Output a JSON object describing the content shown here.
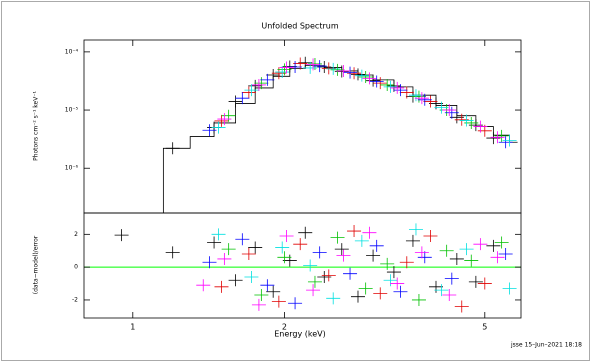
{
  "chart_data": [
    {
      "type": "scatter",
      "title": "Unfolded Spectrum",
      "y_label": "Photons cm⁻² s⁻¹ keV⁻¹",
      "log_x": true,
      "log_y": true,
      "xlim": [
        0.8,
        5.9
      ],
      "ylim": [
        1.7e-07,
        0.00016
      ],
      "yticks": [
        {
          "value": 1e-06,
          "label": "10⁻⁶"
        },
        {
          "value": 1e-05,
          "label": "10⁻⁵"
        },
        {
          "value": 0.0001,
          "label": "10⁻⁴"
        }
      ],
      "model": {
        "color": "#000000",
        "x": [
          1.15,
          1.3,
          1.45,
          1.6,
          1.75,
          1.9,
          2.05,
          2.2,
          2.4,
          2.6,
          2.8,
          3.0,
          3.3,
          3.6,
          4.0,
          4.4,
          4.8,
          5.2,
          5.6
        ],
        "values": [
          2.2e-06,
          3.5e-06,
          6e-06,
          1.3e-05,
          2.4e-05,
          3.8e-05,
          5.2e-05,
          5.8e-05,
          5.4e-05,
          4.7e-05,
          4e-05,
          3.3e-05,
          2.5e-05,
          1.8e-05,
          1.2e-05,
          8e-06,
          5.2e-06,
          3.7e-06,
          2.8e-06
        ]
      },
      "series": [
        {
          "color": "#000000",
          "x": [
            1.2,
            1.45,
            1.6,
            1.75,
            1.9,
            2.05,
            2.2,
            2.4,
            2.6,
            2.8,
            3.0,
            3.3,
            3.6,
            4.0,
            4.4,
            4.8,
            5.2
          ],
          "values": [
            2.2e-06,
            5e-06,
            1.4e-05,
            2.6e-05,
            4e-05,
            5.6e-05,
            6.5e-05,
            5.5e-05,
            4.6e-05,
            4.1e-05,
            3.2e-05,
            2.6e-05,
            1.7e-05,
            1.3e-05,
            7.5e-06,
            5.5e-06,
            3.3e-06
          ]
        },
        {
          "color": "#e00000",
          "x": [
            1.5,
            1.7,
            1.95,
            2.15,
            2.45,
            2.75,
            3.1,
            3.5,
            3.9,
            4.5,
            5.0
          ],
          "values": [
            6.5e-06,
            2e-05,
            4.3e-05,
            6.3e-05,
            5.2e-05,
            4.3e-05,
            2.9e-05,
            2e-05,
            1.4e-05,
            6.8e-06,
            4.4e-06
          ]
        },
        {
          "color": "#00c000",
          "x": [
            1.55,
            1.8,
            2.0,
            2.3,
            2.55,
            2.9,
            3.2,
            3.7,
            4.2,
            4.7,
            5.4
          ],
          "values": [
            8e-06,
            2.9e-05,
            5e-05,
            6.2e-05,
            4.9e-05,
            3.7e-05,
            2.7e-05,
            1.7e-05,
            1e-05,
            6e-06,
            3.6e-06
          ]
        },
        {
          "color": "#0000ff",
          "x": [
            1.42,
            1.65,
            1.85,
            2.1,
            2.35,
            2.7,
            3.05,
            3.4,
            3.8,
            4.3,
            5.5
          ],
          "values": [
            4.5e-06,
            1.6e-05,
            3.3e-05,
            5.5e-05,
            5.7e-05,
            4.4e-05,
            3.1e-05,
            2.2e-05,
            1.5e-05,
            9e-06,
            2.8e-06
          ]
        },
        {
          "color": "#00e0e0",
          "x": [
            1.48,
            1.72,
            1.98,
            2.25,
            2.5,
            2.85,
            3.25,
            3.65,
            4.1,
            4.6,
            5.6
          ],
          "values": [
            5e-06,
            2.2e-05,
            4.5e-05,
            5.3e-05,
            5.1e-05,
            3.9e-05,
            2.5e-05,
            1.8e-05,
            1.1e-05,
            6.6e-06,
            3e-06
          ]
        },
        {
          "color": "#ff00ff",
          "x": [
            1.52,
            1.78,
            2.02,
            2.28,
            2.62,
            2.95,
            3.35,
            3.75,
            4.25,
            4.9,
            5.3
          ],
          "values": [
            7e-06,
            2.7e-05,
            5.4e-05,
            6.1e-05,
            4.7e-05,
            3.5e-05,
            2.4e-05,
            1.6e-05,
            1e-05,
            5.2e-06,
            3.4e-06
          ]
        }
      ]
    },
    {
      "type": "scatter",
      "x_label": "Energy (keV)",
      "y_label": "(data−model)/error",
      "log_x": true,
      "xlim": [
        0.8,
        5.9
      ],
      "ylim": [
        -3.1,
        3.3
      ],
      "xticks": [
        1,
        2,
        5
      ],
      "yticks": [
        -2,
        0,
        2
      ],
      "zero_line": {
        "value": 0,
        "color": "#00ff00"
      },
      "series": [
        {
          "color": "#000000",
          "x": [
            0.95,
            1.2,
            1.45,
            1.6,
            1.75,
            1.9,
            2.05,
            2.2,
            2.4,
            2.6,
            2.8,
            3.0,
            3.3,
            3.6,
            4.0,
            4.4,
            4.8,
            5.2
          ],
          "values": [
            1.95,
            0.9,
            1.5,
            -0.8,
            1.2,
            -1.5,
            0.4,
            2.1,
            -0.6,
            1.1,
            -1.8,
            0.7,
            -0.3,
            1.6,
            -1.2,
            0.5,
            -0.9,
            1.3
          ]
        },
        {
          "color": "#e00000",
          "x": [
            1.5,
            1.7,
            1.95,
            2.15,
            2.45,
            2.75,
            3.1,
            3.5,
            3.9,
            4.5,
            5.0
          ],
          "values": [
            -1.2,
            0.8,
            -2.1,
            1.4,
            -0.5,
            2.2,
            -1.6,
            0.3,
            1.9,
            -2.4,
            -1.0
          ]
        },
        {
          "color": "#00c000",
          "x": [
            1.55,
            1.8,
            2.0,
            2.3,
            2.55,
            2.9,
            3.2,
            3.7,
            4.2,
            4.7,
            5.4
          ],
          "values": [
            1.1,
            -1.7,
            0.6,
            -0.9,
            1.8,
            -1.3,
            0.2,
            -2.0,
            1.0,
            0.4,
            1.5
          ]
        },
        {
          "color": "#0000ff",
          "x": [
            1.42,
            1.65,
            1.85,
            2.1,
            2.35,
            2.7,
            3.05,
            3.4,
            3.8,
            4.3,
            5.5
          ],
          "values": [
            0.3,
            1.7,
            -1.1,
            -2.2,
            0.9,
            -0.4,
            1.3,
            -1.5,
            0.6,
            -0.7,
            0.8
          ]
        },
        {
          "color": "#00e0e0",
          "x": [
            1.48,
            1.72,
            1.98,
            2.25,
            2.5,
            2.85,
            3.25,
            3.65,
            4.1,
            4.6,
            5.6
          ],
          "values": [
            2.0,
            -0.6,
            1.2,
            0.1,
            -1.9,
            1.6,
            -0.8,
            2.3,
            -1.4,
            1.1,
            -1.3
          ]
        },
        {
          "color": "#ff00ff",
          "x": [
            1.38,
            1.52,
            1.78,
            2.02,
            2.28,
            2.62,
            2.95,
            3.35,
            3.75,
            4.25,
            4.9,
            5.3
          ],
          "values": [
            -1.1,
            0.5,
            -2.3,
            1.9,
            -1.4,
            0.7,
            2.1,
            -1.0,
            0.9,
            -1.7,
            1.4,
            0.6
          ]
        }
      ]
    }
  ],
  "footer": "jsse 15–Jun–2021 18:18"
}
